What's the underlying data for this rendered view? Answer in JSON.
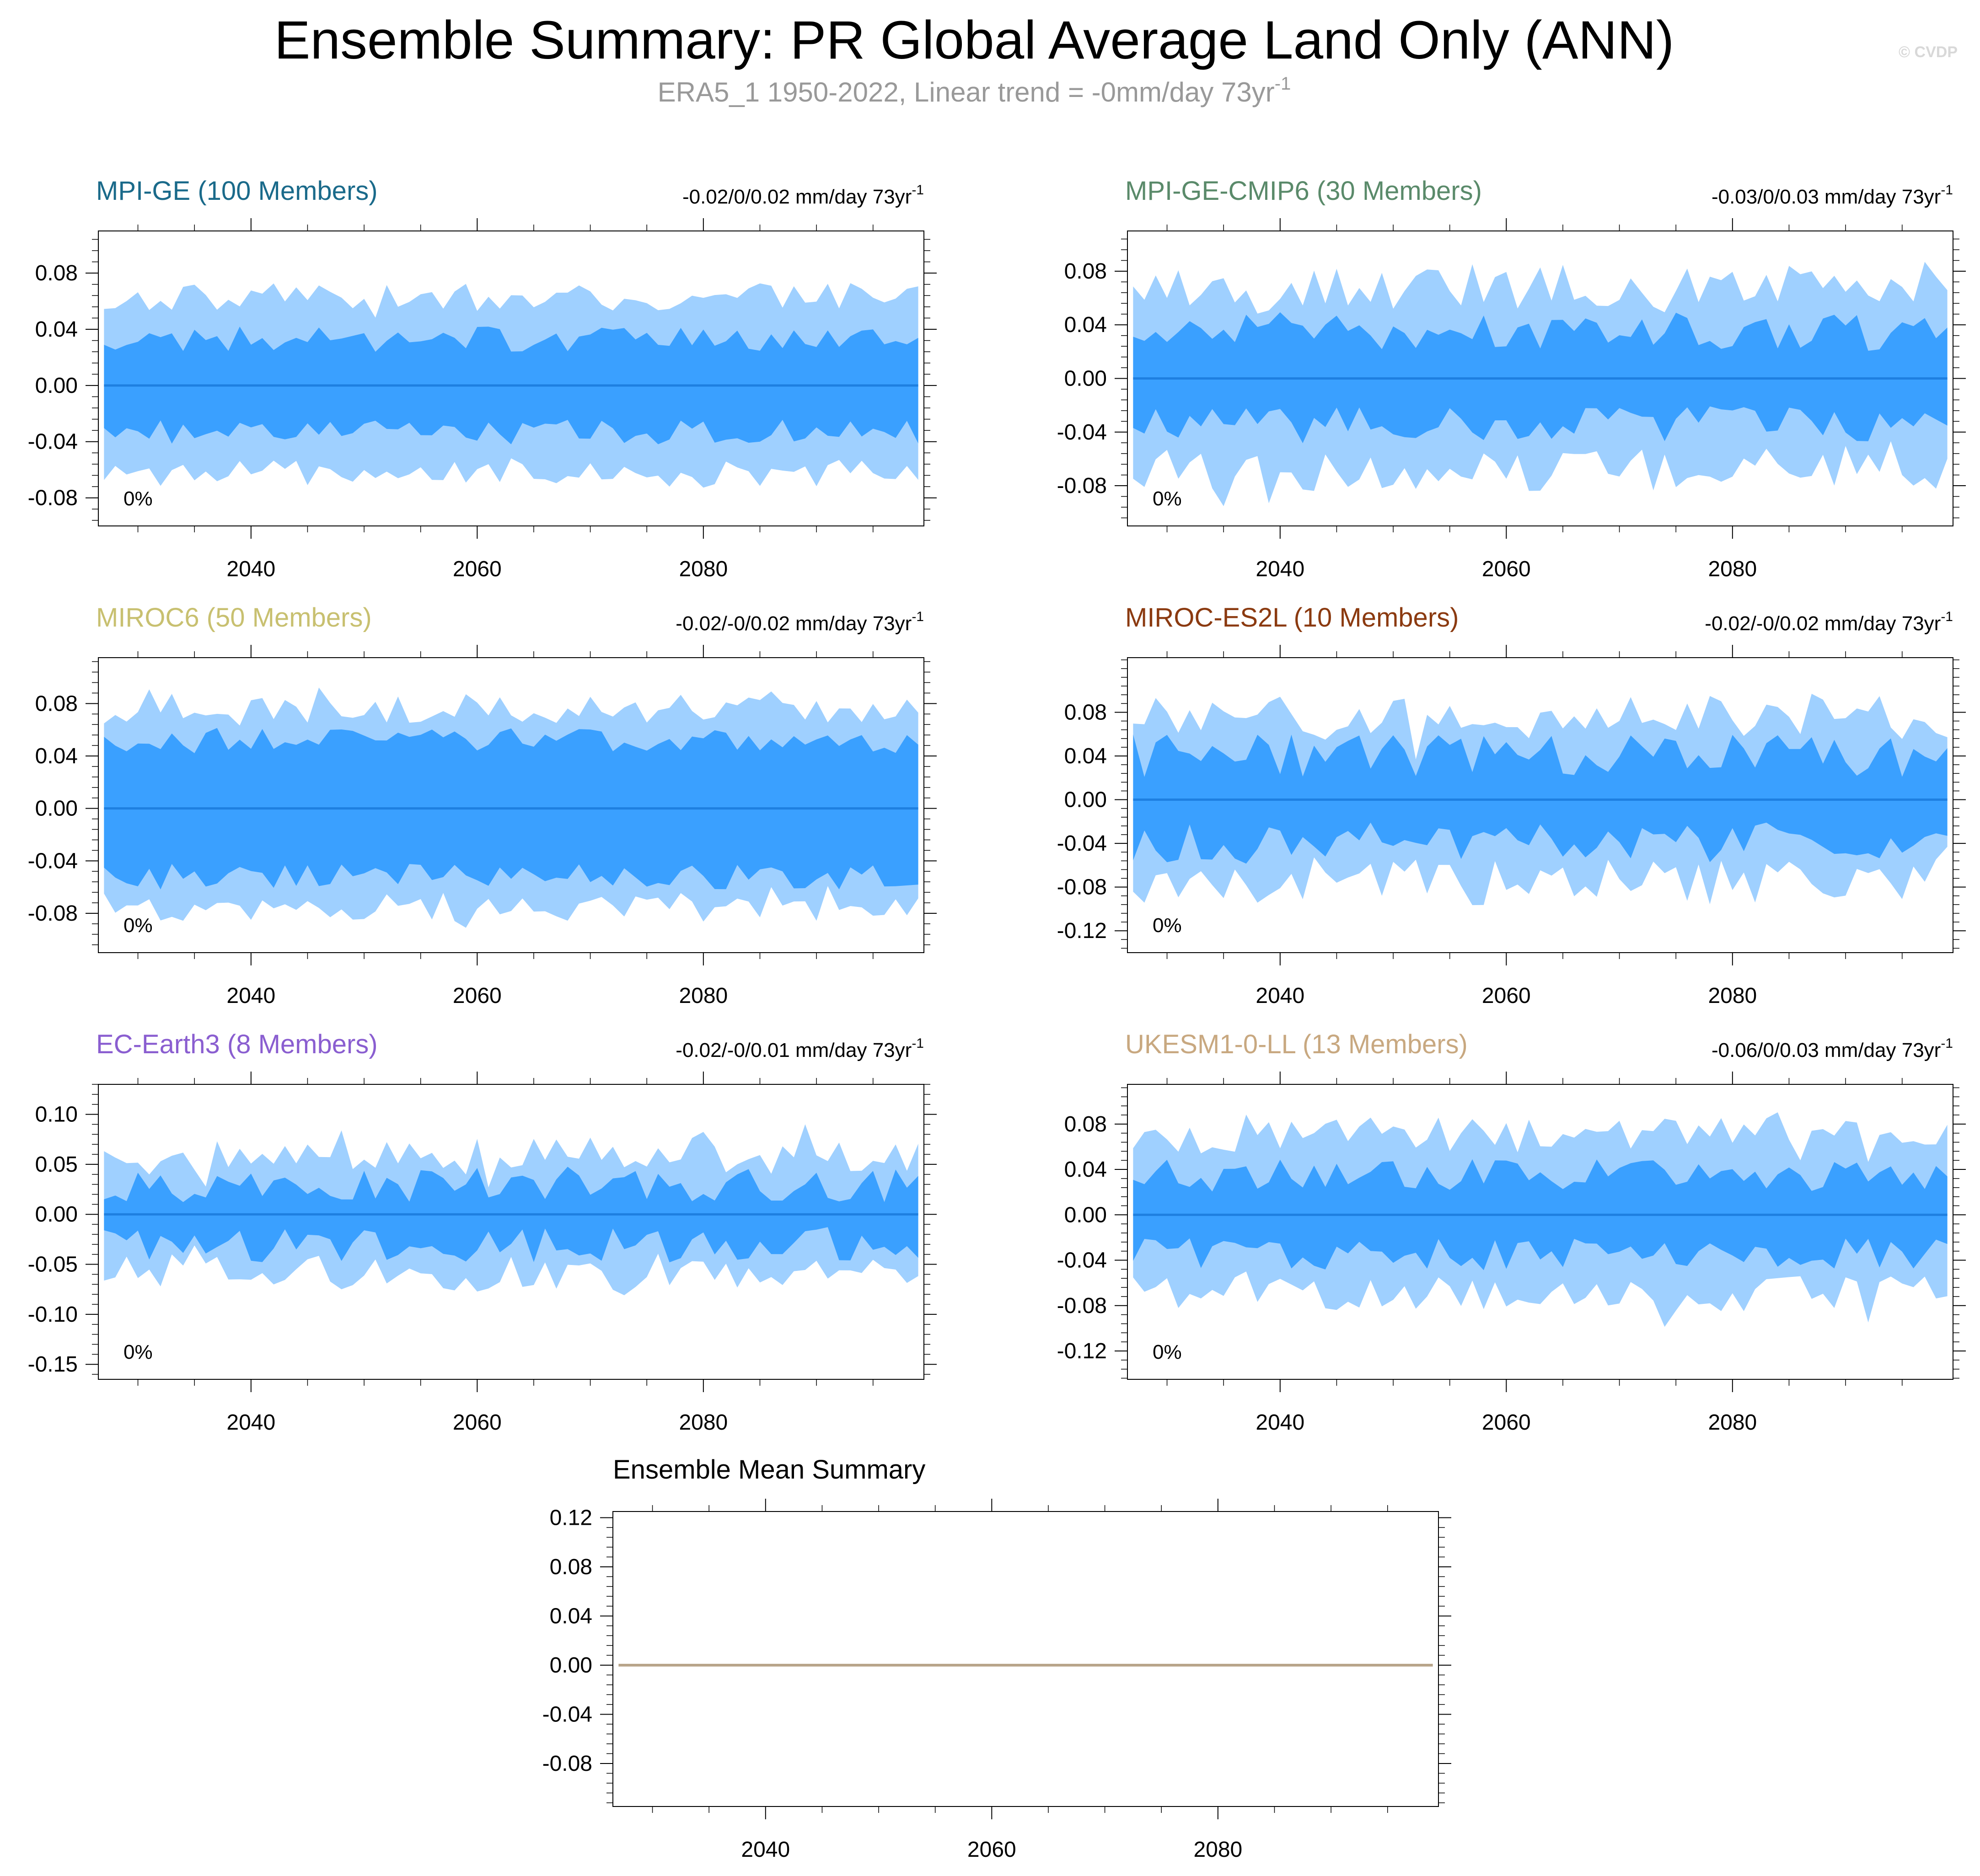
{
  "title": "Ensemble Summary: PR Global Average Land Only (ANN)",
  "subtitle": "ERA5_1 1950-2022, Linear trend = -0mm/day 73yr",
  "subtitle_sup": "-1",
  "watermark": "© CVDP",
  "colors": {
    "inner_band": "#3aa0ff",
    "outer_band": "#9fd0ff",
    "mean_line": "#1e7fe0",
    "ens_mean_line": "#b8a58a"
  },
  "chart_data": [
    {
      "type": "area",
      "title": "MPI-GE (100 Members)",
      "title_color": "#1a6a8a",
      "trend_label": "-0.02/0/0.02 mm/day 73yr",
      "trend_sup": "-1",
      "pct_label": "0%",
      "ylim": [
        -0.1,
        0.11
      ],
      "yticks": [
        -0.08,
        -0.04,
        0.0,
        0.04,
        0.08
      ],
      "ytick_labels": [
        "-0.08",
        "-0.04",
        "0.00",
        "0.04",
        "0.08"
      ],
      "xlim": [
        2026.5,
        2099.5
      ],
      "xticks": [
        2040,
        2060,
        2080
      ],
      "xtick_labels": [
        "2040",
        "2060",
        "2080"
      ],
      "x_start": 2027,
      "x_end": 2099,
      "mean": 0.0,
      "inner": 0.033,
      "outer": 0.063,
      "var": 0.01,
      "seed": 11
    },
    {
      "type": "area",
      "title": "MPI-GE-CMIP6 (30 Members)",
      "title_color": "#5a8a6a",
      "trend_label": "-0.03/0/0.03 mm/day 73yr",
      "trend_sup": "-1",
      "pct_label": "0%",
      "ylim": [
        -0.11,
        0.11
      ],
      "yticks": [
        -0.08,
        -0.04,
        0.0,
        0.04,
        0.08
      ],
      "ytick_labels": [
        "-0.08",
        "-0.04",
        "0.00",
        "0.04",
        "0.08"
      ],
      "xlim": [
        2026.5,
        2099.5
      ],
      "xticks": [
        2040,
        2060,
        2080
      ],
      "xtick_labels": [
        "2040",
        "2060",
        "2080"
      ],
      "x_start": 2027,
      "x_end": 2099,
      "mean": 0.0,
      "inner": 0.035,
      "outer": 0.068,
      "var": 0.016,
      "seed": 23
    },
    {
      "type": "area",
      "title": "MIROC6 (50 Members)",
      "title_color": "#c8c070",
      "trend_label": "-0.02/-0/0.02 mm/day 73yr",
      "trend_sup": "-1",
      "pct_label": "0%",
      "ylim": [
        -0.11,
        0.115
      ],
      "yticks": [
        -0.08,
        -0.04,
        0.0,
        0.04,
        0.08
      ],
      "ytick_labels": [
        "-0.08",
        "-0.04",
        "0.00",
        "0.04",
        "0.08"
      ],
      "xlim": [
        2026.5,
        2099.5
      ],
      "xticks": [
        2040,
        2060,
        2080
      ],
      "xtick_labels": [
        "2040",
        "2060",
        "2080"
      ],
      "x_start": 2027,
      "x_end": 2099,
      "mean": 0.0,
      "inner": 0.052,
      "outer": 0.075,
      "var": 0.011,
      "seed": 37
    },
    {
      "type": "area",
      "title": "MIROC-ES2L (10 Members)",
      "title_color": "#8b3a10",
      "trend_label": "-0.02/-0/0.02 mm/day 73yr",
      "trend_sup": "-1",
      "pct_label": "0%",
      "ylim": [
        -0.14,
        0.13
      ],
      "yticks": [
        -0.12,
        -0.08,
        -0.04,
        0.0,
        0.04,
        0.08
      ],
      "ytick_labels": [
        "-0.12",
        "-0.08",
        "-0.04",
        "0.00",
        "0.04",
        "0.08"
      ],
      "xlim": [
        2026.5,
        2099.5
      ],
      "xticks": [
        2040,
        2060,
        2080
      ],
      "xtick_labels": [
        "2040",
        "2060",
        "2080"
      ],
      "x_start": 2027,
      "x_end": 2099,
      "mean": 0.0,
      "inner": 0.04,
      "outer": 0.075,
      "var": 0.022,
      "seed": 41
    },
    {
      "type": "area",
      "title": "EC-Earth3 (8 Members)",
      "title_color": "#8a5ed0",
      "trend_label": "-0.02/-0/0.01 mm/day 73yr",
      "trend_sup": "-1",
      "pct_label": "0%",
      "ylim": [
        -0.165,
        0.13
      ],
      "yticks": [
        -0.15,
        -0.1,
        -0.05,
        0.0,
        0.05,
        0.1
      ],
      "ytick_labels": [
        "-0.15",
        "-0.10",
        "-0.05",
        "0.00",
        "0.05",
        "0.10"
      ],
      "xlim": [
        2026.5,
        2099.5
      ],
      "xticks": [
        2040,
        2060,
        2080
      ],
      "xtick_labels": [
        "2040",
        "2060",
        "2080"
      ],
      "x_start": 2027,
      "x_end": 2099,
      "mean": 0.0,
      "inner": 0.03,
      "outer": 0.058,
      "var": 0.02,
      "seed": 53
    },
    {
      "type": "area",
      "title": "UKESM1-0-LL (13 Members)",
      "title_color": "#c8a880",
      "trend_label": "-0.06/0/0.03 mm/day 73yr",
      "trend_sup": "-1",
      "pct_label": "0%",
      "ylim": [
        -0.145,
        0.115
      ],
      "yticks": [
        -0.12,
        -0.08,
        -0.04,
        0.0,
        0.04,
        0.08
      ],
      "ytick_labels": [
        "-0.12",
        "-0.08",
        "-0.04",
        "0.00",
        "0.04",
        "0.08"
      ],
      "xlim": [
        2026.5,
        2099.5
      ],
      "xticks": [
        2040,
        2060,
        2080
      ],
      "xtick_labels": [
        "2040",
        "2060",
        "2080"
      ],
      "x_start": 2027,
      "x_end": 2099,
      "mean": 0.0,
      "inner": 0.035,
      "outer": 0.07,
      "var": 0.016,
      "seed": 67
    },
    {
      "type": "line",
      "title": "Ensemble Mean Summary",
      "ylim": [
        -0.115,
        0.125
      ],
      "yticks": [
        -0.08,
        -0.04,
        0.0,
        0.04,
        0.08,
        0.12
      ],
      "ytick_labels": [
        "-0.08",
        "-0.04",
        "0.00",
        "0.04",
        "0.08",
        "0.12"
      ],
      "xlim": [
        2026.5,
        2099.5
      ],
      "xticks": [
        2040,
        2060,
        2080
      ],
      "xtick_labels": [
        "2040",
        "2060",
        "2080"
      ],
      "series": [
        {
          "name": "ensemble mean",
          "x": [
            2027,
            2099
          ],
          "values": [
            0.0,
            0.0
          ]
        }
      ]
    }
  ]
}
